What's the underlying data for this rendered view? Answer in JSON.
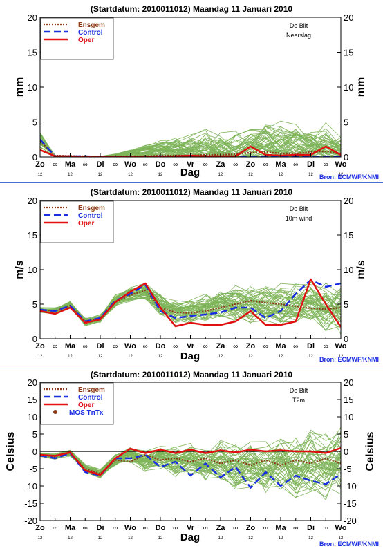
{
  "source_label": "Bron: ECMWF/KNMI",
  "colors": {
    "ensemble": "#7fb55a",
    "ensgem": "#8b3a1a",
    "control": "#1a2fe0",
    "oper": "#e01010",
    "mos": "#8b3a1a",
    "source": "#1a2fe0",
    "separator": "#4a6fd0"
  },
  "x_axis": {
    "label": "Dag",
    "day_labels": [
      "Zo",
      "Ma",
      "Di",
      "Wo",
      "Do",
      "Vr",
      "Za",
      "Zo",
      "Ma",
      "Di",
      "Wo"
    ],
    "hour_label": "12",
    "midnight_symbol": "∞"
  },
  "panels": [
    {
      "id": "precip",
      "title": "(Startdatum: 2010011012)   Maandag   11 Januari   2010",
      "station": "De Bilt",
      "variable": "Neerslag",
      "ylabel_left": "mm",
      "ylabel_right": "mm",
      "legend": [
        "Ensgem",
        "Control",
        "Oper"
      ]
    },
    {
      "id": "wind",
      "title": "(Startdatum: 2010011012)   Maandag   11 Januari   2010",
      "station": "De Bilt",
      "variable": "10m wind",
      "ylabel_left": "m/s",
      "ylabel_right": "m/s",
      "legend": [
        "Ensgem",
        "Control",
        "Oper"
      ]
    },
    {
      "id": "temp",
      "title": "(Startdatum: 2010011012)   Maandag   11 Januari   2010",
      "station": "De Bilt",
      "variable": "T2m",
      "ylabel_left": "Celsius",
      "ylabel_right": "Celsius",
      "legend": [
        "Ensgem",
        "Control",
        "Oper",
        "MOS TnTx"
      ]
    }
  ],
  "chart_data": [
    {
      "type": "line",
      "title": "(Startdatum: 2010011012)   Maandag   11 Januari   2010",
      "xlabel": "Dag",
      "ylabel": "mm",
      "ylim": [
        0,
        20
      ],
      "yticks": [
        0,
        5,
        10,
        15,
        20
      ],
      "xlim": [
        0,
        10
      ],
      "grid": false,
      "legend_position": "top-left",
      "ensemble": {
        "members": 50,
        "base": [
          2.5,
          0.1,
          0.1,
          0.05,
          0.05,
          0.2,
          0.5,
          0.8,
          1.0,
          1.2,
          1.3,
          1.0,
          0.8,
          0.8,
          1.5,
          2.0,
          1.8,
          1.8,
          1.5,
          1.5,
          0.8
        ],
        "spread": [
          1.0,
          0.1,
          0.1,
          0.05,
          0.05,
          0.2,
          0.5,
          1.0,
          1.2,
          1.5,
          2.0,
          2.5,
          2.5,
          2.5,
          2.5,
          3.0,
          3.0,
          2.5,
          2.5,
          3.0,
          2.0
        ],
        "min": 0
      },
      "series": [
        {
          "name": "Ensgem",
          "x": [
            0,
            0.5,
            1,
            1.5,
            2,
            2.5,
            3,
            3.5,
            4,
            4.5,
            5,
            5.5,
            6,
            6.5,
            7,
            7.5,
            8,
            8.5,
            9,
            9.5,
            10
          ],
          "y": [
            2.2,
            0.2,
            0.15,
            0.1,
            0.05,
            0.05,
            0.1,
            0.1,
            0.2,
            0.2,
            0.2,
            0.3,
            0.3,
            0.4,
            0.6,
            0.7,
            0.5,
            0.5,
            0.7,
            0.8,
            0.4
          ]
        },
        {
          "name": "Control",
          "x": [
            0,
            0.5,
            1,
            1.5,
            2,
            2.5,
            3,
            3.5,
            4,
            4.5,
            5,
            5.5,
            6,
            6.5,
            7,
            7.5,
            8,
            8.5,
            9,
            9.5,
            10
          ],
          "y": [
            2.5,
            0.1,
            0.1,
            0.1,
            0.05,
            0.0,
            0.0,
            0.0,
            0.1,
            0.0,
            0.0,
            0.0,
            0.0,
            0.0,
            0.0,
            0.0,
            0.0,
            0.0,
            0.0,
            0.0,
            0.0
          ]
        },
        {
          "name": "Oper",
          "x": [
            0,
            0.5,
            1,
            1.5,
            2,
            2.5,
            3,
            3.5,
            4,
            4.5,
            5,
            5.5,
            6,
            6.5,
            7,
            7.5,
            8,
            8.5,
            9,
            9.5,
            10
          ],
          "y": [
            1.0,
            0.1,
            0.1,
            0.0,
            0.0,
            0.0,
            0.0,
            0.1,
            0.0,
            0.1,
            0.2,
            0.1,
            0.1,
            0.1,
            1.5,
            0.3,
            0.2,
            0.3,
            0.3,
            1.5,
            0.3
          ]
        }
      ]
    },
    {
      "type": "line",
      "title": "(Startdatum: 2010011012)   Maandag   11 Januari   2010",
      "xlabel": "Dag",
      "ylabel": "m/s",
      "ylim": [
        0,
        20
      ],
      "yticks": [
        0,
        5,
        10,
        15,
        20
      ],
      "xlim": [
        0,
        10
      ],
      "grid": false,
      "legend_position": "top-left",
      "ensemble": {
        "members": 50,
        "base": [
          4.2,
          4.0,
          5.0,
          2.5,
          3.0,
          5.5,
          6.5,
          7.0,
          5.0,
          4.0,
          4.0,
          4.5,
          5.0,
          5.0,
          5.0,
          5.0,
          5.0,
          5.0,
          5.0,
          4.5,
          4.5
        ],
        "spread": [
          0.3,
          0.4,
          0.4,
          0.5,
          0.6,
          0.8,
          1.0,
          1.2,
          1.4,
          1.5,
          1.6,
          1.8,
          2.0,
          2.2,
          2.3,
          2.5,
          2.6,
          2.8,
          2.8,
          3.0,
          3.0
        ],
        "min": 0
      },
      "series": [
        {
          "name": "Ensgem",
          "x": [
            0,
            0.5,
            1,
            1.5,
            2,
            2.5,
            3,
            3.5,
            4,
            4.5,
            5,
            5.5,
            6,
            6.5,
            7,
            7.5,
            8,
            8.5,
            9,
            9.5,
            10
          ],
          "y": [
            4.2,
            4.0,
            4.8,
            2.5,
            3.0,
            5.3,
            6.3,
            7.0,
            4.5,
            3.8,
            3.7,
            4.0,
            4.5,
            5.0,
            5.5,
            5.2,
            5.0,
            4.7,
            4.4,
            4.3,
            4.5
          ]
        },
        {
          "name": "Control",
          "x": [
            0,
            0.5,
            1,
            1.5,
            2,
            2.5,
            3,
            3.5,
            4,
            4.5,
            5,
            5.5,
            6,
            6.5,
            7,
            7.5,
            8,
            8.5,
            9,
            9.5,
            10
          ],
          "y": [
            4.2,
            4.0,
            4.8,
            2.5,
            3.0,
            5.5,
            6.5,
            7.8,
            4.0,
            3.0,
            3.3,
            3.5,
            3.8,
            4.5,
            4.5,
            3.0,
            4.0,
            6.5,
            8.5,
            7.5,
            8.0
          ]
        },
        {
          "name": "Oper",
          "x": [
            0,
            0.5,
            1,
            1.5,
            2,
            2.5,
            3,
            3.5,
            4,
            4.5,
            5,
            5.5,
            6,
            6.5,
            7,
            7.5,
            8,
            8.5,
            9,
            9.5,
            10
          ],
          "y": [
            4.0,
            3.6,
            4.5,
            2.3,
            2.8,
            5.3,
            6.8,
            8.0,
            4.5,
            1.8,
            2.3,
            2.0,
            2.0,
            2.5,
            4.0,
            2.0,
            2.0,
            2.5,
            8.6,
            5.0,
            1.7
          ]
        }
      ]
    },
    {
      "type": "line",
      "title": "(Startdatum: 2010011012)   Maandag   11 Januari   2010",
      "xlabel": "Dag",
      "ylabel": "Celsius",
      "ylim": [
        -20,
        20
      ],
      "yticks": [
        -20,
        -15,
        -10,
        -5,
        0,
        5,
        10,
        15,
        20
      ],
      "xlim": [
        0,
        10
      ],
      "grid": false,
      "legend_position": "top-left",
      "ensemble": {
        "members": 50,
        "base": [
          -1.0,
          -1.5,
          -0.5,
          -5.0,
          -6.5,
          -2.5,
          -1.0,
          -3.0,
          -1.5,
          -3.0,
          -2.0,
          -4.0,
          -2.5,
          -4.5,
          -3.0,
          -5.0,
          -3.0,
          -5.0,
          -3.5,
          -5.0,
          -3.0
        ],
        "spread": [
          0.5,
          0.8,
          0.8,
          1.0,
          1.2,
          1.5,
          2.0,
          2.5,
          3.0,
          3.5,
          4.0,
          4.5,
          5.0,
          5.5,
          6.0,
          6.5,
          7.0,
          7.5,
          8.0,
          8.5,
          9.0
        ]
      },
      "series": [
        {
          "name": "Ensgem",
          "x": [
            0,
            0.5,
            1,
            1.5,
            2,
            2.5,
            3,
            3.5,
            4,
            4.5,
            5,
            5.5,
            6,
            6.5,
            7,
            7.5,
            8,
            8.5,
            9,
            9.5,
            10
          ],
          "y": [
            -1.0,
            -1.5,
            -0.5,
            -5.0,
            -6.5,
            -2.5,
            -3.0,
            -1.0,
            -2.5,
            -2.0,
            -3.0,
            -2.0,
            -3.5,
            -2.5,
            -4.0,
            -2.5,
            -4.0,
            -2.5,
            -3.5,
            -2.0,
            -3.5
          ]
        },
        {
          "name": "Control",
          "x": [
            0,
            0.5,
            1,
            1.5,
            2,
            2.5,
            3,
            3.5,
            4,
            4.5,
            5,
            5.5,
            6,
            6.5,
            7,
            7.5,
            8,
            8.5,
            9,
            9.5,
            10
          ],
          "y": [
            -1.2,
            -2.0,
            -0.5,
            -6.0,
            -7.0,
            -2.0,
            -2.0,
            -1.0,
            -4.5,
            -3.0,
            -7.0,
            -3.5,
            -7.5,
            -4.5,
            -10.5,
            -6.0,
            -10.0,
            -7.0,
            -8.5,
            -9.5,
            -6.5
          ]
        },
        {
          "name": "Oper",
          "x": [
            0,
            0.5,
            1,
            1.5,
            2,
            2.5,
            3,
            3.5,
            4,
            4.5,
            5,
            5.5,
            6,
            6.5,
            7,
            7.5,
            8,
            8.5,
            9,
            9.5,
            10
          ],
          "y": [
            -1.0,
            -1.3,
            -0.3,
            -5.5,
            -6.8,
            -2.0,
            0.8,
            -0.5,
            0.5,
            -0.5,
            0.5,
            -0.5,
            0.3,
            -0.3,
            0.5,
            0.0,
            0.3,
            0.0,
            0.0,
            -0.5,
            1.0
          ]
        }
      ],
      "mos_tntx": []
    }
  ]
}
